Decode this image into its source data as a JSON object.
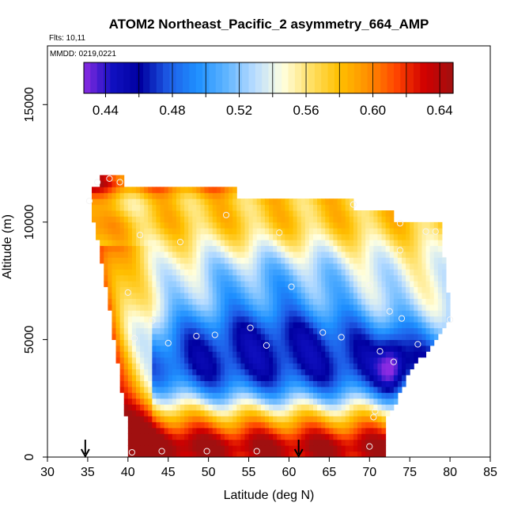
{
  "chart_data": {
    "type": "heatmap",
    "title": "ATOM2 Northeast_Pacific_2 asymmetry_664_AMP",
    "subtitle_flights": "Flts: 10,11",
    "subtitle_dates": "MMDD: 0219,0221",
    "xlabel": "Latitude (deg N)",
    "ylabel": "Altitude (m)",
    "xlim": [
      30,
      85
    ],
    "ylim": [
      0,
      17500
    ],
    "x_ticks": [
      "30",
      "35",
      "40",
      "45",
      "50",
      "55",
      "60",
      "65",
      "70",
      "75",
      "80",
      "85"
    ],
    "y_ticks": [
      "0",
      "5000",
      "10000",
      "15000"
    ],
    "colorbar": {
      "range": [
        0.427,
        0.648
      ],
      "tick_labels": [
        "0.44",
        "0.48",
        "0.52",
        "0.56",
        "0.60",
        "0.64"
      ],
      "tick_values": [
        0.44,
        0.48,
        0.52,
        0.56,
        0.6,
        0.64
      ],
      "colors": [
        "#8a2be2",
        "#1010c0",
        "#0000a0",
        "#1e5ee8",
        "#1e90ff",
        "#5fb4ff",
        "#b8dcff",
        "#ffffe0",
        "#ffe066",
        "#ffc000",
        "#ff9000",
        "#ff4500",
        "#d00000",
        "#a01010"
      ]
    },
    "markers_lat": [
      34.7,
      61.2
    ],
    "observation_points": [
      {
        "lat": 36.2,
        "alt": 11700
      },
      {
        "lat": 37.7,
        "alt": 11850
      },
      {
        "lat": 39.0,
        "alt": 11700
      },
      {
        "lat": 35.2,
        "alt": 10900
      },
      {
        "lat": 52.2,
        "alt": 10300
      },
      {
        "lat": 68.0,
        "alt": 10750
      },
      {
        "lat": 73.8,
        "alt": 9950
      },
      {
        "lat": 41.5,
        "alt": 9450
      },
      {
        "lat": 46.5,
        "alt": 9150
      },
      {
        "lat": 58.8,
        "alt": 9550
      },
      {
        "lat": 77.0,
        "alt": 9600
      },
      {
        "lat": 78.2,
        "alt": 9600
      },
      {
        "lat": 73.8,
        "alt": 8800
      },
      {
        "lat": 60.3,
        "alt": 7250
      },
      {
        "lat": 70.0,
        "alt": 7300
      },
      {
        "lat": 40.0,
        "alt": 7000
      },
      {
        "lat": 43.0,
        "alt": 5800
      },
      {
        "lat": 55.2,
        "alt": 5500
      },
      {
        "lat": 72.5,
        "alt": 6200
      },
      {
        "lat": 74.0,
        "alt": 5900
      },
      {
        "lat": 80.0,
        "alt": 5850
      },
      {
        "lat": 40.8,
        "alt": 5050
      },
      {
        "lat": 48.5,
        "alt": 5150
      },
      {
        "lat": 50.8,
        "alt": 5200
      },
      {
        "lat": 64.2,
        "alt": 5300
      },
      {
        "lat": 66.5,
        "alt": 5100
      },
      {
        "lat": 45.0,
        "alt": 4850
      },
      {
        "lat": 57.2,
        "alt": 4750
      },
      {
        "lat": 76.0,
        "alt": 4800
      },
      {
        "lat": 71.3,
        "alt": 4500
      },
      {
        "lat": 73.0,
        "alt": 4050
      },
      {
        "lat": 70.7,
        "alt": 1950
      },
      {
        "lat": 70.5,
        "alt": 1700
      },
      {
        "lat": 70.0,
        "alt": 450
      },
      {
        "lat": 40.5,
        "alt": 200
      },
      {
        "lat": 44.2,
        "alt": 250
      },
      {
        "lat": 49.8,
        "alt": 250
      },
      {
        "lat": 56.0,
        "alt": 250
      }
    ]
  }
}
